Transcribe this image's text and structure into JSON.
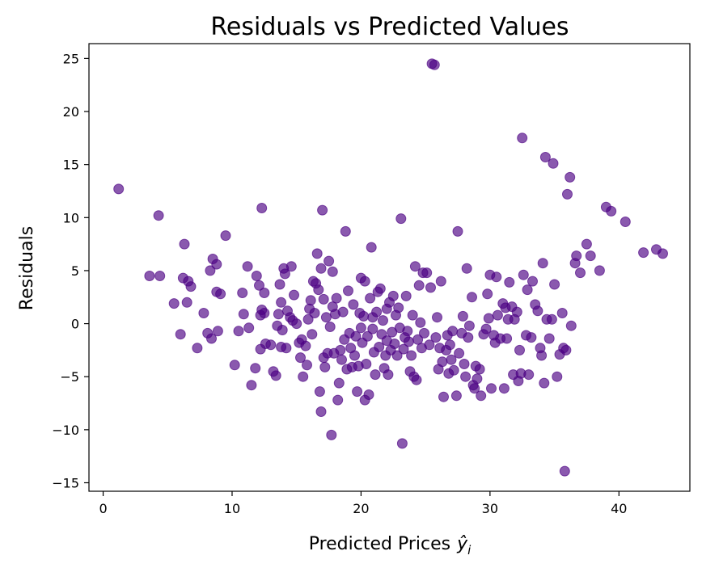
{
  "chart_data": {
    "type": "scatter",
    "title": "Residuals vs Predicted Values",
    "xlabel": "Predicted Prices",
    "xlabel_math": "ŷ",
    "xlabel_sub": "i",
    "ylabel": "Residuals",
    "xlim": [
      -1.1,
      45.5
    ],
    "ylim": [
      -15.8,
      26.4
    ],
    "xticks": [
      0,
      10,
      20,
      30,
      40
    ],
    "yticks": [
      -15,
      -10,
      -5,
      0,
      5,
      10,
      15,
      20,
      25
    ],
    "xtick_labels": [
      "0",
      "10",
      "20",
      "30",
      "40"
    ],
    "ytick_labels": [
      "−15",
      "−10",
      "−5",
      "0",
      "5",
      "10",
      "15",
      "20",
      "25"
    ],
    "grid": false,
    "marker_color": "#4B0082",
    "marker_alpha": 0.65,
    "points": [
      [
        1.2,
        12.7
      ],
      [
        3.6,
        4.5
      ],
      [
        4.3,
        10.2
      ],
      [
        4.4,
        4.5
      ],
      [
        5.5,
        1.9
      ],
      [
        6.0,
        -1.0
      ],
      [
        6.2,
        4.3
      ],
      [
        6.3,
        7.5
      ],
      [
        6.5,
        2.0
      ],
      [
        6.6,
        4.0
      ],
      [
        6.8,
        3.5
      ],
      [
        7.3,
        -2.3
      ],
      [
        7.8,
        1.0
      ],
      [
        8.1,
        -0.9
      ],
      [
        8.3,
        5.0
      ],
      [
        8.4,
        -1.4
      ],
      [
        8.5,
        6.1
      ],
      [
        8.8,
        3.0
      ],
      [
        8.8,
        5.6
      ],
      [
        8.9,
        -0.7
      ],
      [
        9.1,
        2.8
      ],
      [
        9.5,
        8.3
      ],
      [
        10.2,
        -3.9
      ],
      [
        10.5,
        -0.7
      ],
      [
        10.8,
        2.9
      ],
      [
        10.9,
        0.9
      ],
      [
        11.2,
        5.4
      ],
      [
        11.3,
        -0.4
      ],
      [
        11.5,
        -5.8
      ],
      [
        11.8,
        -4.2
      ],
      [
        11.9,
        4.5
      ],
      [
        12.1,
        3.6
      ],
      [
        12.2,
        -2.4
      ],
      [
        12.2,
        0.8
      ],
      [
        12.3,
        10.9
      ],
      [
        12.3,
        1.3
      ],
      [
        12.5,
        2.9
      ],
      [
        12.6,
        -1.9
      ],
      [
        12.5,
        1.0
      ],
      [
        13.0,
        -2.0
      ],
      [
        13.2,
        -4.5
      ],
      [
        13.4,
        -4.9
      ],
      [
        13.5,
        -0.2
      ],
      [
        13.6,
        0.9
      ],
      [
        13.7,
        3.7
      ],
      [
        13.8,
        -2.2
      ],
      [
        13.8,
        2.0
      ],
      [
        13.9,
        -0.6
      ],
      [
        14.0,
        5.2
      ],
      [
        14.1,
        4.7
      ],
      [
        14.2,
        -2.3
      ],
      [
        14.3,
        1.2
      ],
      [
        14.5,
        0.6
      ],
      [
        14.6,
        5.4
      ],
      [
        14.7,
        0.3
      ],
      [
        14.8,
        2.7
      ],
      [
        15.0,
        0.0
      ],
      [
        15.2,
        -1.8
      ],
      [
        15.3,
        -3.2
      ],
      [
        15.4,
        -1.5
      ],
      [
        15.5,
        -5.0
      ],
      [
        15.7,
        -2.1
      ],
      [
        15.8,
        -3.9
      ],
      [
        15.9,
        0.4
      ],
      [
        16.0,
        1.4
      ],
      [
        16.1,
        2.2
      ],
      [
        16.2,
        -1.0
      ],
      [
        16.3,
        4.0
      ],
      [
        16.4,
        1.0
      ],
      [
        16.5,
        3.8
      ],
      [
        16.6,
        6.6
      ],
      [
        16.7,
        3.2
      ],
      [
        16.8,
        -6.4
      ],
      [
        16.9,
        -8.3
      ],
      [
        16.9,
        5.2
      ],
      [
        17.0,
        10.7
      ],
      [
        17.1,
        2.3
      ],
      [
        17.1,
        -3.2
      ],
      [
        17.2,
        -4.1
      ],
      [
        17.3,
        0.6
      ],
      [
        17.4,
        -2.8
      ],
      [
        17.5,
        5.9
      ],
      [
        17.6,
        -0.3
      ],
      [
        17.7,
        -10.5
      ],
      [
        17.8,
        1.6
      ],
      [
        17.8,
        4.9
      ],
      [
        17.9,
        -2.8
      ],
      [
        18.0,
        0.9
      ],
      [
        18.1,
        2.4
      ],
      [
        18.2,
        -7.2
      ],
      [
        18.3,
        -5.6
      ],
      [
        18.4,
        -2.5
      ],
      [
        18.5,
        -3.4
      ],
      [
        18.6,
        1.1
      ],
      [
        18.7,
        -1.5
      ],
      [
        18.8,
        8.7
      ],
      [
        18.9,
        -4.3
      ],
      [
        19.0,
        3.1
      ],
      [
        19.1,
        -0.9
      ],
      [
        19.2,
        -2.3
      ],
      [
        19.3,
        -4.1
      ],
      [
        19.4,
        1.8
      ],
      [
        19.5,
        -3.0
      ],
      [
        19.6,
        -1.2
      ],
      [
        19.7,
        -6.4
      ],
      [
        19.8,
        -4.0
      ],
      [
        19.9,
        1.0
      ],
      [
        20.0,
        4.3
      ],
      [
        20.0,
        -0.4
      ],
      [
        20.1,
        -1.8
      ],
      [
        20.2,
        0.7
      ],
      [
        20.3,
        -7.2
      ],
      [
        20.3,
        4.0
      ],
      [
        20.4,
        -3.8
      ],
      [
        20.5,
        -1.2
      ],
      [
        20.6,
        -6.7
      ],
      [
        20.7,
        2.4
      ],
      [
        20.8,
        7.2
      ],
      [
        20.9,
        -0.5
      ],
      [
        20.9,
        0.6
      ],
      [
        21.0,
        -2.7
      ],
      [
        21.1,
        -4.8
      ],
      [
        21.2,
        1.1
      ],
      [
        21.3,
        3.0
      ],
      [
        21.4,
        -2.2
      ],
      [
        21.5,
        3.3
      ],
      [
        21.6,
        -1.0
      ],
      [
        21.7,
        0.3
      ],
      [
        21.8,
        -4.2
      ],
      [
        21.9,
        -3.0
      ],
      [
        22.0,
        1.4
      ],
      [
        22.0,
        -1.6
      ],
      [
        22.1,
        -4.8
      ],
      [
        22.2,
        2.0
      ],
      [
        22.3,
        -2.5
      ],
      [
        22.4,
        -0.8
      ],
      [
        22.5,
        2.6
      ],
      [
        22.6,
        -1.9
      ],
      [
        22.7,
        0.8
      ],
      [
        22.8,
        -3.0
      ],
      [
        22.9,
        1.5
      ],
      [
        23.0,
        -0.4
      ],
      [
        23.1,
        9.9
      ],
      [
        23.2,
        -11.3
      ],
      [
        23.3,
        -2.4
      ],
      [
        23.4,
        -1.3
      ],
      [
        23.5,
        2.6
      ],
      [
        23.6,
        -0.7
      ],
      [
        23.7,
        -1.7
      ],
      [
        23.8,
        -4.5
      ],
      [
        23.9,
        -3.0
      ],
      [
        24.0,
        0.8
      ],
      [
        24.1,
        -5.0
      ],
      [
        24.2,
        5.4
      ],
      [
        24.3,
        -5.3
      ],
      [
        24.4,
        -1.5
      ],
      [
        24.5,
        3.6
      ],
      [
        24.6,
        0.1
      ],
      [
        24.7,
        -2.3
      ],
      [
        24.8,
        4.8
      ],
      [
        24.9,
        -0.9
      ],
      [
        25.1,
        4.8
      ],
      [
        25.3,
        -2.0
      ],
      [
        25.4,
        3.4
      ],
      [
        25.5,
        24.5
      ],
      [
        25.7,
        24.4
      ],
      [
        25.8,
        -1.3
      ],
      [
        25.9,
        0.6
      ],
      [
        26.0,
        -4.3
      ],
      [
        26.1,
        -2.3
      ],
      [
        26.2,
        4.0
      ],
      [
        26.3,
        -3.6
      ],
      [
        26.4,
        -6.9
      ],
      [
        26.6,
        -2.5
      ],
      [
        26.7,
        -1.1
      ],
      [
        26.8,
        -4.7
      ],
      [
        26.9,
        -2.0
      ],
      [
        27.0,
        -3.4
      ],
      [
        27.1,
        -0.7
      ],
      [
        27.2,
        -4.4
      ],
      [
        27.4,
        -6.8
      ],
      [
        27.5,
        8.7
      ],
      [
        27.6,
        -2.8
      ],
      [
        27.8,
        -0.9
      ],
      [
        27.9,
        0.7
      ],
      [
        28.0,
        -3.8
      ],
      [
        28.1,
        -5.0
      ],
      [
        28.2,
        5.2
      ],
      [
        28.3,
        -1.3
      ],
      [
        28.4,
        -0.2
      ],
      [
        28.6,
        2.5
      ],
      [
        28.7,
        -5.8
      ],
      [
        28.8,
        -6.1
      ],
      [
        28.9,
        -4.0
      ],
      [
        29.0,
        -5.2
      ],
      [
        29.2,
        -4.3
      ],
      [
        29.3,
        -6.8
      ],
      [
        29.5,
        -1.0
      ],
      [
        29.7,
        -0.5
      ],
      [
        29.8,
        2.8
      ],
      [
        29.9,
        0.5
      ],
      [
        30.0,
        4.6
      ],
      [
        30.1,
        -6.1
      ],
      [
        30.3,
        -1.1
      ],
      [
        30.4,
        -1.8
      ],
      [
        30.5,
        4.4
      ],
      [
        30.6,
        0.8
      ],
      [
        30.8,
        -1.4
      ],
      [
        31.0,
        1.9
      ],
      [
        31.1,
        -6.1
      ],
      [
        31.2,
        1.5
      ],
      [
        31.3,
        -1.4
      ],
      [
        31.4,
        0.4
      ],
      [
        31.5,
        3.9
      ],
      [
        31.7,
        1.6
      ],
      [
        31.8,
        -4.8
      ],
      [
        31.9,
        0.4
      ],
      [
        32.1,
        1.1
      ],
      [
        32.2,
        -5.4
      ],
      [
        32.3,
        -2.5
      ],
      [
        32.4,
        -4.7
      ],
      [
        32.5,
        17.5
      ],
      [
        32.6,
        4.6
      ],
      [
        32.8,
        -1.1
      ],
      [
        32.9,
        3.2
      ],
      [
        33.0,
        -4.8
      ],
      [
        33.2,
        -1.3
      ],
      [
        33.3,
        4.0
      ],
      [
        33.5,
        1.8
      ],
      [
        33.7,
        1.2
      ],
      [
        33.9,
        -2.3
      ],
      [
        34.0,
        -3.0
      ],
      [
        34.1,
        5.7
      ],
      [
        34.2,
        -5.6
      ],
      [
        34.3,
        15.7
      ],
      [
        34.4,
        0.4
      ],
      [
        34.6,
        -1.4
      ],
      [
        34.8,
        0.4
      ],
      [
        34.9,
        15.1
      ],
      [
        35.0,
        3.7
      ],
      [
        35.2,
        -5.0
      ],
      [
        35.4,
        -2.9
      ],
      [
        35.6,
        1.0
      ],
      [
        35.7,
        -2.3
      ],
      [
        35.8,
        -13.9
      ],
      [
        35.9,
        -2.5
      ],
      [
        36.0,
        12.2
      ],
      [
        36.2,
        13.8
      ],
      [
        36.3,
        -0.2
      ],
      [
        36.6,
        5.7
      ],
      [
        36.7,
        6.4
      ],
      [
        37.0,
        4.8
      ],
      [
        37.5,
        7.5
      ],
      [
        37.8,
        6.4
      ],
      [
        38.5,
        5.0
      ],
      [
        39.0,
        11.0
      ],
      [
        39.4,
        10.6
      ],
      [
        40.5,
        9.6
      ],
      [
        41.9,
        6.7
      ],
      [
        42.9,
        7.0
      ],
      [
        43.4,
        6.6
      ]
    ]
  }
}
